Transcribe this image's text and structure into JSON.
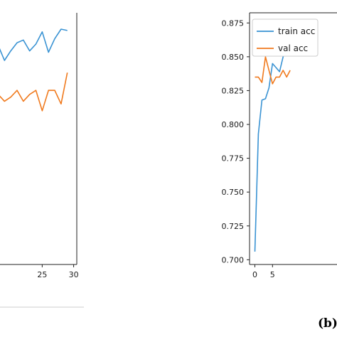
{
  "panel_caption": "(b)",
  "colors": {
    "train": "#3a93d3",
    "val": "#f07a1e",
    "axis": "#222222"
  },
  "chart_data": [
    {
      "panel": "left (partial)",
      "type": "line",
      "xlim": [
        -1.5,
        30.5
      ],
      "ylim": [
        0.695,
        0.88
      ],
      "x_ticks": [
        25,
        30
      ],
      "x_tick_labels": [
        "25",
        "30"
      ],
      "series": [
        {
          "key": "train",
          "x": [
            17,
            18,
            19,
            20,
            21,
            22,
            23,
            24,
            25,
            26,
            27,
            28,
            29
          ],
          "values": [
            0.845,
            0.856,
            0.845,
            0.852,
            0.858,
            0.86,
            0.852,
            0.857,
            0.866,
            0.851,
            0.861,
            0.868,
            0.867
          ]
        },
        {
          "key": "val",
          "x": [
            17,
            18,
            19,
            20,
            21,
            22,
            23,
            24,
            25,
            26,
            27,
            28,
            29
          ],
          "values": [
            0.812,
            0.82,
            0.815,
            0.818,
            0.823,
            0.815,
            0.82,
            0.823,
            0.808,
            0.823,
            0.823,
            0.813,
            0.836
          ]
        }
      ]
    },
    {
      "panel": "right (partial)",
      "type": "line",
      "xlim": [
        -1.5,
        30.5
      ],
      "ylim": [
        0.6965,
        0.8825
      ],
      "x_ticks": [
        0,
        5
      ],
      "x_tick_labels": [
        "0",
        "5"
      ],
      "y_ticks": [
        0.7,
        0.725,
        0.75,
        0.775,
        0.8,
        0.825,
        0.85,
        0.875
      ],
      "y_tick_labels": [
        "0.700",
        "0.725",
        "0.750",
        "0.775",
        "0.800",
        "0.825",
        "0.850",
        "0.875"
      ],
      "legend": {
        "placement": "top-left",
        "entries": [
          "train acc",
          "val acc"
        ]
      },
      "series": [
        {
          "key": "train",
          "name": "train acc",
          "x": [
            0,
            1,
            2,
            3,
            4,
            5,
            6,
            7,
            8,
            9,
            10
          ],
          "values": [
            0.706,
            0.793,
            0.818,
            0.819,
            0.827,
            0.845,
            0.842,
            0.839,
            0.85,
            0.855,
            0.857
          ]
        },
        {
          "key": "val",
          "name": "val acc",
          "x": [
            0,
            1,
            2,
            3,
            4,
            5,
            6,
            7,
            8,
            9,
            10
          ],
          "values": [
            0.835,
            0.835,
            0.831,
            0.85,
            0.84,
            0.83,
            0.835,
            0.835,
            0.84,
            0.835,
            0.84
          ]
        }
      ]
    }
  ]
}
